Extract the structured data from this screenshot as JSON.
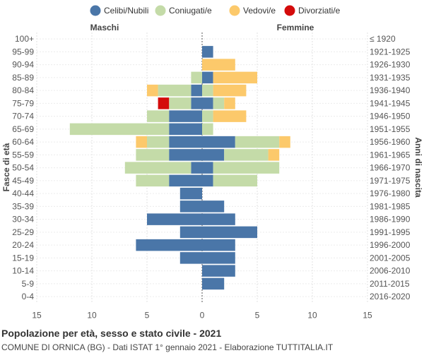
{
  "chart_data": {
    "type": "bar",
    "orientation": "horizontal-population-pyramid",
    "title": "Popolazione per età, sesso e stato civile - 2021",
    "subtitle": "COMUNE DI ORNICA (BG) - Dati ISTAT 1° gennaio 2021 - Elaborazione TUTTITALIA.IT",
    "left_label": "Maschi",
    "right_label": "Femmine",
    "ylabel_left": "Fasce di età",
    "ylabel_right": "Anni di nascita",
    "xlim": [
      -15,
      15
    ],
    "x_ticks": [
      15,
      10,
      5,
      0,
      5,
      10,
      15
    ],
    "legend_position": "top",
    "series": [
      {
        "name": "Celibi/Nubili",
        "color": "#4a76a8"
      },
      {
        "name": "Coniugati/e",
        "color": "#c4dba8"
      },
      {
        "name": "Vedovi/e",
        "color": "#fcc96b"
      },
      {
        "name": "Divorziati/e",
        "color": "#d40b0b"
      }
    ],
    "rows": [
      {
        "age": "100+",
        "birth": "≤ 1920",
        "male": [
          0,
          0,
          0,
          0
        ],
        "female": [
          0,
          0,
          0,
          0
        ]
      },
      {
        "age": "95-99",
        "birth": "1921-1925",
        "male": [
          0,
          0,
          0,
          0
        ],
        "female": [
          1,
          0,
          0,
          0
        ]
      },
      {
        "age": "90-94",
        "birth": "1926-1930",
        "male": [
          0,
          0,
          0,
          0
        ],
        "female": [
          0,
          0,
          3,
          0
        ]
      },
      {
        "age": "85-89",
        "birth": "1931-1935",
        "male": [
          0,
          1,
          0,
          0
        ],
        "female": [
          1,
          0,
          4,
          0
        ]
      },
      {
        "age": "80-84",
        "birth": "1936-1940",
        "male": [
          1,
          3,
          1,
          0
        ],
        "female": [
          0,
          1,
          3,
          0
        ]
      },
      {
        "age": "75-79",
        "birth": "1941-1945",
        "male": [
          1,
          2,
          0,
          1
        ],
        "female": [
          1,
          1,
          1,
          0
        ]
      },
      {
        "age": "70-74",
        "birth": "1946-1950",
        "male": [
          3,
          2,
          0,
          0
        ],
        "female": [
          0,
          1,
          3,
          0
        ]
      },
      {
        "age": "65-69",
        "birth": "1951-1955",
        "male": [
          3,
          9,
          0,
          0
        ],
        "female": [
          0,
          1,
          0,
          0
        ]
      },
      {
        "age": "60-64",
        "birth": "1956-1960",
        "male": [
          3,
          2,
          1,
          0
        ],
        "female": [
          3,
          4,
          1,
          0
        ]
      },
      {
        "age": "55-59",
        "birth": "1961-1965",
        "male": [
          3,
          3,
          0,
          0
        ],
        "female": [
          2,
          4,
          1,
          0
        ]
      },
      {
        "age": "50-54",
        "birth": "1966-1970",
        "male": [
          1,
          6,
          0,
          0
        ],
        "female": [
          1,
          6,
          0,
          0
        ]
      },
      {
        "age": "45-49",
        "birth": "1971-1975",
        "male": [
          3,
          3,
          0,
          0
        ],
        "female": [
          1,
          4,
          0,
          0
        ]
      },
      {
        "age": "40-44",
        "birth": "1976-1980",
        "male": [
          2,
          0,
          0,
          0
        ],
        "female": [
          0,
          0,
          0,
          0
        ]
      },
      {
        "age": "35-39",
        "birth": "1981-1985",
        "male": [
          2,
          0,
          0,
          0
        ],
        "female": [
          2,
          0,
          0,
          0
        ]
      },
      {
        "age": "30-34",
        "birth": "1986-1990",
        "male": [
          5,
          0,
          0,
          0
        ],
        "female": [
          3,
          0,
          0,
          0
        ]
      },
      {
        "age": "25-29",
        "birth": "1991-1995",
        "male": [
          2,
          0,
          0,
          0
        ],
        "female": [
          5,
          0,
          0,
          0
        ]
      },
      {
        "age": "20-24",
        "birth": "1996-2000",
        "male": [
          6,
          0,
          0,
          0
        ],
        "female": [
          3,
          0,
          0,
          0
        ]
      },
      {
        "age": "15-19",
        "birth": "2001-2005",
        "male": [
          2,
          0,
          0,
          0
        ],
        "female": [
          3,
          0,
          0,
          0
        ]
      },
      {
        "age": "10-14",
        "birth": "2006-2010",
        "male": [
          0,
          0,
          0,
          0
        ],
        "female": [
          3,
          0,
          0,
          0
        ]
      },
      {
        "age": "5-9",
        "birth": "2011-2015",
        "male": [
          0,
          0,
          0,
          0
        ],
        "female": [
          2,
          0,
          0,
          0
        ]
      },
      {
        "age": "0-4",
        "birth": "2016-2020",
        "male": [
          0,
          0,
          0,
          0
        ],
        "female": [
          0,
          0,
          0,
          0
        ]
      }
    ]
  }
}
